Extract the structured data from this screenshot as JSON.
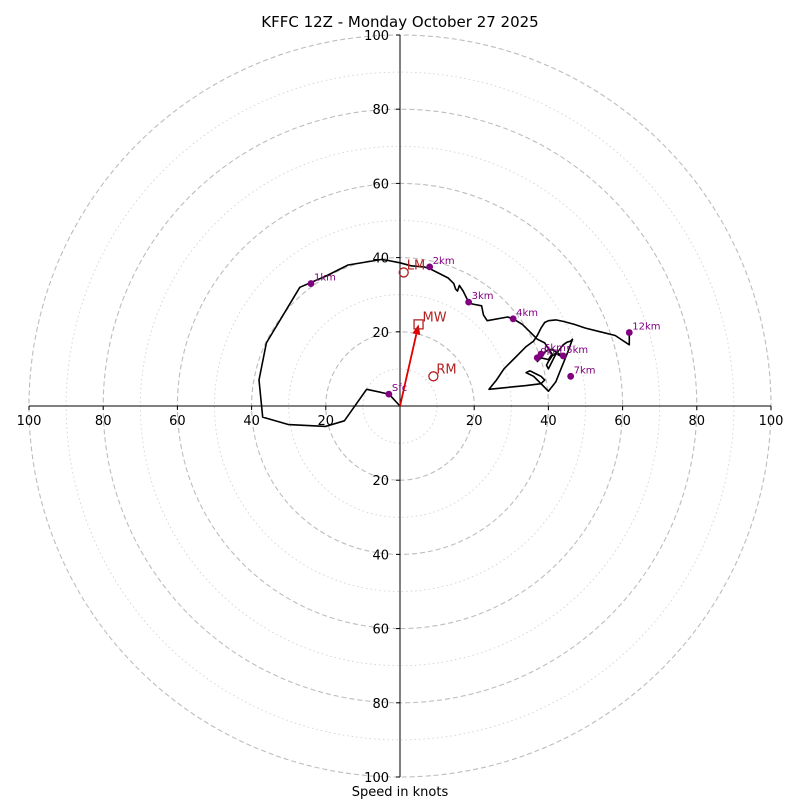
{
  "chart_data": {
    "type": "hodograph",
    "title": "KFFC 12Z - Monday October 27 2025",
    "xlabel": "Speed in knots",
    "max_speed": 100,
    "ring_major_step": 20,
    "ring_minor_step": 10,
    "tick_values": [
      20,
      40,
      60,
      80,
      100
    ],
    "axis_labels": {
      "left": [
        "100",
        "80",
        "60",
        "40",
        "20"
      ],
      "right": [
        "20",
        "40",
        "60",
        "80",
        "100"
      ],
      "top": [
        "20",
        "40",
        "60",
        "80",
        "100"
      ],
      "bottom": [
        "20",
        "40",
        "60",
        "80",
        "100"
      ]
    },
    "units": "knots",
    "colors": {
      "trace": "#000000",
      "height_markers": "#800080",
      "motion": "#b22222",
      "mean_wind_vector": "#e00000",
      "grid": "#bbbbbb"
    },
    "trace": [
      [
        0,
        0
      ],
      [
        -3,
        3.2
      ],
      [
        -9,
        4.5
      ],
      [
        -15,
        -4
      ],
      [
        -20,
        -5.5
      ],
      [
        -30,
        -5
      ],
      [
        -37,
        -3
      ],
      [
        -38,
        7
      ],
      [
        -36,
        17
      ],
      [
        -27,
        32
      ],
      [
        -20,
        35
      ],
      [
        -14,
        38
      ],
      [
        -5,
        39.5
      ],
      [
        -3,
        39.2
      ],
      [
        0,
        38.6
      ],
      [
        3,
        37.8
      ],
      [
        6.5,
        37.5
      ],
      [
        8,
        37
      ],
      [
        10,
        36
      ],
      [
        12,
        35
      ],
      [
        13,
        34.5
      ],
      [
        13.5,
        34
      ],
      [
        14,
        33.5
      ],
      [
        14.5,
        33
      ],
      [
        15,
        31.5
      ],
      [
        15.5,
        31
      ],
      [
        16,
        32.5
      ],
      [
        17,
        31
      ],
      [
        18.5,
        28
      ],
      [
        19.5,
        27.5
      ],
      [
        22,
        27
      ],
      [
        22.5,
        24.5
      ],
      [
        23.5,
        23
      ],
      [
        29,
        24
      ],
      [
        30.5,
        23.5
      ],
      [
        33,
        22
      ],
      [
        35,
        20
      ],
      [
        37,
        18
      ],
      [
        39,
        17
      ],
      [
        41,
        14
      ],
      [
        40,
        12.5
      ],
      [
        38,
        13
      ],
      [
        37,
        12
      ],
      [
        37.2,
        13.5
      ],
      [
        37.8,
        14.2
      ],
      [
        39,
        14.5
      ],
      [
        40,
        15.2
      ],
      [
        41,
        15.2
      ],
      [
        42,
        14.6
      ],
      [
        43,
        14
      ],
      [
        44,
        13.5
      ],
      [
        44.5,
        13.2
      ],
      [
        43,
        13.6
      ],
      [
        42,
        14.2
      ],
      [
        41,
        13.5
      ],
      [
        40,
        12
      ],
      [
        39.5,
        11
      ],
      [
        40,
        10
      ],
      [
        41,
        12
      ],
      [
        42,
        14
      ],
      [
        43,
        15.2
      ],
      [
        44,
        16.5
      ],
      [
        45,
        17.2
      ],
      [
        46,
        17.5
      ],
      [
        46.5,
        18
      ],
      [
        45,
        14
      ],
      [
        43,
        9
      ],
      [
        42,
        6.5
      ],
      [
        40,
        4
      ],
      [
        39,
        5
      ],
      [
        38,
        6
      ],
      [
        37,
        7
      ],
      [
        36,
        8
      ],
      [
        34,
        9
      ],
      [
        35,
        9.5
      ],
      [
        37,
        8.5
      ],
      [
        38,
        8
      ],
      [
        39,
        7
      ],
      [
        38,
        6
      ],
      [
        34,
        5.5
      ],
      [
        29,
        5
      ],
      [
        24,
        4.5
      ],
      [
        26,
        7
      ],
      [
        28,
        10
      ],
      [
        30,
        12
      ],
      [
        32,
        14
      ],
      [
        34,
        16
      ],
      [
        36,
        17.5
      ],
      [
        37,
        19
      ],
      [
        38,
        21
      ],
      [
        39,
        22.5
      ],
      [
        40,
        23
      ],
      [
        42,
        23.2
      ],
      [
        44,
        22.8
      ],
      [
        47,
        22
      ],
      [
        50,
        21
      ],
      [
        54,
        20
      ],
      [
        58,
        19
      ],
      [
        61.8,
        16.5
      ],
      [
        61.8,
        19.8
      ]
    ],
    "height_markers": [
      {
        "label": "Sfc",
        "u": -3,
        "v": 3.2
      },
      {
        "label": "1km",
        "u": -24,
        "v": 33
      },
      {
        "label": "2km",
        "u": 8,
        "v": 37.5
      },
      {
        "label": "3km",
        "u": 18.5,
        "v": 28
      },
      {
        "label": "4km",
        "u": 30.5,
        "v": 23.5
      },
      {
        "label": "5km",
        "u": 44,
        "v": 13.5
      },
      {
        "label": "6km",
        "u": 38,
        "v": 14
      },
      {
        "label": "7km",
        "u": 46,
        "v": 8
      },
      {
        "label": "9km",
        "u": 37,
        "v": 13
      },
      {
        "label": "12km",
        "u": 61.8,
        "v": 19.8
      }
    ],
    "storm_motion": {
      "mean_wind": {
        "label": "MW",
        "u": 5,
        "v": 22
      },
      "left_mover": {
        "label": "LM",
        "u": 1,
        "v": 36
      },
      "right_mover": {
        "label": "RM",
        "u": 9,
        "v": 8
      }
    }
  }
}
